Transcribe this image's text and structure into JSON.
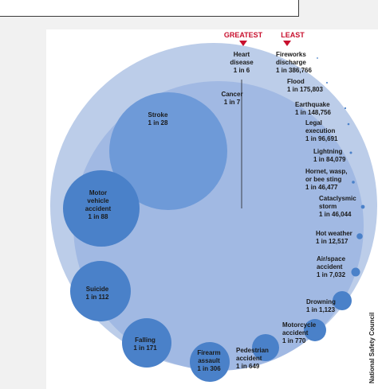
{
  "legend": {
    "greatest": "GREATEST",
    "least": "LEAST"
  },
  "source": "National Safety Council",
  "chart_data": {
    "type": "bubble",
    "title": "",
    "unit": "1 in N odds of dying",
    "items": [
      {
        "name": "Heart disease",
        "odds": "1 in 6",
        "odds_value": 6
      },
      {
        "name": "Cancer",
        "odds": "1 in 7",
        "odds_value": 7
      },
      {
        "name": "Stroke",
        "odds": "1 in 28",
        "odds_value": 28
      },
      {
        "name": "Motor vehicle accident",
        "odds": "1 in 88",
        "odds_value": 88
      },
      {
        "name": "Suicide",
        "odds": "1 in 112",
        "odds_value": 112
      },
      {
        "name": "Falling",
        "odds": "1 in 171",
        "odds_value": 171
      },
      {
        "name": "Firearm assault",
        "odds": "1 in 306",
        "odds_value": 306
      },
      {
        "name": "Pedestrian accident",
        "odds": "1 in 649",
        "odds_value": 649
      },
      {
        "name": "Motorcycle accident",
        "odds": "1 in 770",
        "odds_value": 770
      },
      {
        "name": "Drowning",
        "odds": "1 in 1,123",
        "odds_value": 1123
      },
      {
        "name": "Air/space accident",
        "odds": "1 in 7,032",
        "odds_value": 7032
      },
      {
        "name": "Hot weather",
        "odds": "1 in 12,517",
        "odds_value": 12517
      },
      {
        "name": "Cataclysmic storm",
        "odds": "1 in 46,044",
        "odds_value": 46044
      },
      {
        "name": "Hornet, wasp, or bee sting",
        "odds": "1 in 46,477",
        "odds_value": 46477
      },
      {
        "name": "Lightning",
        "odds": "1 in 84,079",
        "odds_value": 84079
      },
      {
        "name": "Legal execution",
        "odds": "1 in 96,691",
        "odds_value": 96691
      },
      {
        "name": "Earthquake",
        "odds": "1 in 148,756",
        "odds_value": 148756
      },
      {
        "name": "Flood",
        "odds": "1 in 175,803",
        "odds_value": 175803
      },
      {
        "name": "Fireworks discharge",
        "odds": "1 in 386,766",
        "odds_value": 386766
      }
    ]
  },
  "colors": {
    "outer": "#bccde9",
    "cancer": "#a1b9e3",
    "stroke": "#6e9ad8",
    "bubble": "#4a81c9",
    "accent": "#c8102e"
  }
}
